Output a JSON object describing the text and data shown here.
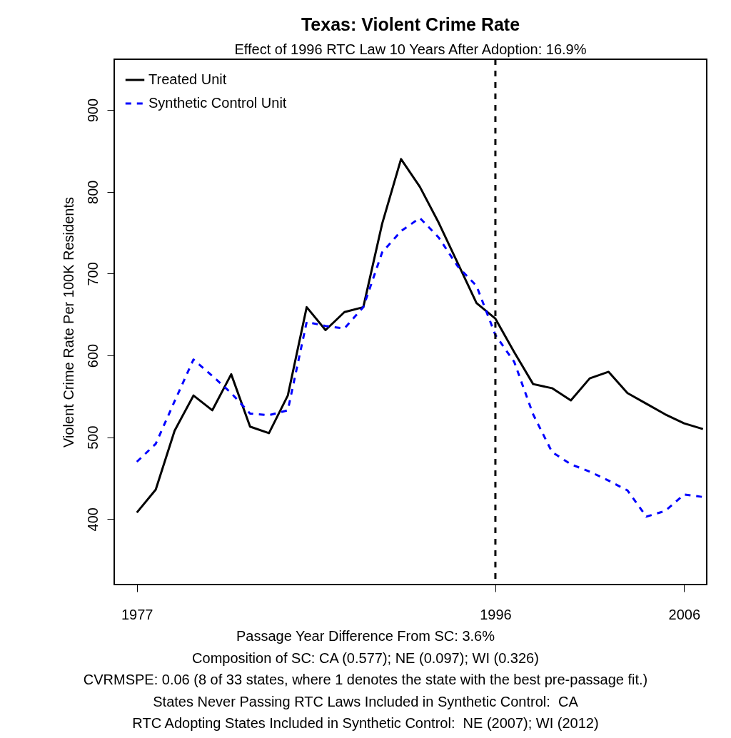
{
  "chart_data": {
    "type": "line",
    "title": "Texas: Violent Crime Rate",
    "subtitle": "Effect of 1996 RTC Law 10 Years After Adoption: 16.9%",
    "ylabel": "Violent Crime Rate Per 100K Residents",
    "x": [
      1977,
      1978,
      1979,
      1980,
      1981,
      1982,
      1983,
      1984,
      1985,
      1986,
      1987,
      1988,
      1989,
      1990,
      1991,
      1992,
      1993,
      1994,
      1995,
      1996,
      1997,
      1998,
      1999,
      2000,
      2001,
      2002,
      2003,
      2004,
      2005,
      2006,
      2007
    ],
    "series": [
      {
        "name": "Treated Unit",
        "color": "#000000",
        "line_style": "solid",
        "values": [
          408,
          436,
          508,
          551,
          533,
          577,
          513,
          505,
          551,
          659,
          631,
          653,
          659,
          761,
          840,
          806,
          762,
          713,
          664,
          645,
          604,
          565,
          560,
          545,
          572,
          580,
          554,
          541,
          528,
          517,
          510
        ]
      },
      {
        "name": "Synthetic Control Unit",
        "color": "#0000ff",
        "line_style": "dashed",
        "values": [
          470,
          492,
          544,
          595,
          575,
          554,
          529,
          527,
          533,
          641,
          636,
          633,
          659,
          726,
          752,
          768,
          744,
          709,
          685,
          625,
          592,
          528,
          482,
          467,
          458,
          447,
          435,
          403,
          410,
          430,
          427
        ]
      }
    ],
    "xlim": [
      1975.8,
      2007.2
    ],
    "xticks": [
      1977,
      1996,
      2006
    ],
    "ylim": [
      320,
      962
    ],
    "yticks": [
      400,
      500,
      600,
      700,
      800,
      900
    ],
    "grid": false,
    "legend": "top left",
    "ref_lines": [
      {
        "axis": "x",
        "value": 1996,
        "color": "#000000",
        "line_style": "dashed"
      }
    ],
    "annotations": [
      "Passage Year Difference From SC: 3.6%",
      "Composition of SC: CA (0.577); NE (0.097); WI (0.326)",
      "CVRMSPE: 0.06 (8 of 33 states, where 1 denotes the state with the best pre-passage fit.)",
      "States Never Passing RTC Laws Included in Synthetic Control:  CA",
      "RTC Adopting States Included in Synthetic Control:  NE (2007); WI (2012)"
    ]
  }
}
